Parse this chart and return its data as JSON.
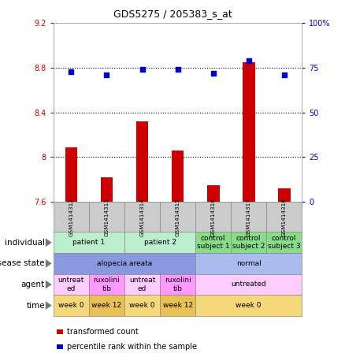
{
  "title": "GDS5275 / 205383_s_at",
  "samples": [
    "GSM1414312",
    "GSM1414313",
    "GSM1414314",
    "GSM1414315",
    "GSM1414316",
    "GSM1414317",
    "GSM1414318"
  ],
  "bar_values": [
    8.09,
    7.82,
    8.32,
    8.06,
    7.75,
    8.85,
    7.72
  ],
  "bar_bottom": 7.6,
  "dot_values": [
    73,
    71,
    74,
    74,
    72,
    79,
    71
  ],
  "bar_color": "#cc0000",
  "dot_color": "#0000cc",
  "ylim_left": [
    7.6,
    9.2
  ],
  "ylim_right": [
    0,
    100
  ],
  "yticks_left": [
    7.6,
    8.0,
    8.4,
    8.8,
    9.2
  ],
  "ytick_labels_left": [
    "7.6",
    "8",
    "8.4",
    "8.8",
    "9.2"
  ],
  "yticks_right": [
    0,
    25,
    50,
    75,
    100
  ],
  "ytick_labels_right": [
    "0",
    "25",
    "50",
    "75",
    "100%"
  ],
  "hlines": [
    8.0,
    8.4,
    8.8
  ],
  "rows": [
    {
      "label": "individual",
      "cells": [
        {
          "text": "patient 1",
          "span": 2,
          "color": "#bbeecc"
        },
        {
          "text": "patient 2",
          "span": 2,
          "color": "#bbeecc"
        },
        {
          "text": "control\nsubject 1",
          "span": 1,
          "color": "#88dd88"
        },
        {
          "text": "control\nsubject 2",
          "span": 1,
          "color": "#88dd88"
        },
        {
          "text": "control\nsubject 3",
          "span": 1,
          "color": "#88dd88"
        }
      ]
    },
    {
      "label": "disease state",
      "cells": [
        {
          "text": "alopecia areata",
          "span": 4,
          "color": "#8899dd"
        },
        {
          "text": "normal",
          "span": 3,
          "color": "#aabbee"
        }
      ]
    },
    {
      "label": "agent",
      "cells": [
        {
          "text": "untreat\ned",
          "span": 1,
          "color": "#ffccff"
        },
        {
          "text": "ruxolini\ntib",
          "span": 1,
          "color": "#ff99ff"
        },
        {
          "text": "untreat\ned",
          "span": 1,
          "color": "#ffccff"
        },
        {
          "text": "ruxolini\ntib",
          "span": 1,
          "color": "#ff99ff"
        },
        {
          "text": "untreated",
          "span": 3,
          "color": "#ffccff"
        }
      ]
    },
    {
      "label": "time",
      "cells": [
        {
          "text": "week 0",
          "span": 1,
          "color": "#f5d87a"
        },
        {
          "text": "week 12",
          "span": 1,
          "color": "#e8c055"
        },
        {
          "text": "week 0",
          "span": 1,
          "color": "#f5d87a"
        },
        {
          "text": "week 12",
          "span": 1,
          "color": "#e8c055"
        },
        {
          "text": "week 0",
          "span": 3,
          "color": "#f5d87a"
        }
      ]
    }
  ],
  "legend": [
    {
      "color": "#cc0000",
      "label": "transformed count"
    },
    {
      "color": "#0000cc",
      "label": "percentile rank within the sample"
    }
  ],
  "sample_col_color": "#cccccc",
  "tick_color_left": "#cc0000",
  "tick_color_right": "#0000cc"
}
